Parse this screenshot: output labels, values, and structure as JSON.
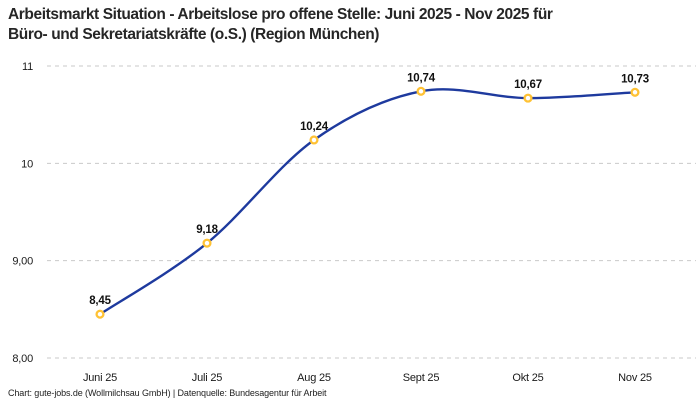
{
  "header": {
    "title_line1": "Arbeitsmarkt Situation - Arbeitslose pro offene Stelle: Juni 2025 - Nov 2025 für",
    "title_line2": "Büro- und Sekretariatskräfte (o.S.) (Region München)"
  },
  "footer": {
    "credit": "Chart: gute-jobs.de (Wollmilchsau GmbH) | Datenquelle: Bundesagentur für Arbeit"
  },
  "chart_data": {
    "type": "line",
    "title": "Arbeitsmarkt Situation - Arbeitslose pro offene Stelle: Juni 2025 - Nov 2025 für Büro- und Sekretariatskräfte (o.S.) (Region München)",
    "categories": [
      "Juni 25",
      "Juli 25",
      "Aug 25",
      "Sept 25",
      "Okt 25",
      "Nov 25"
    ],
    "values": [
      8.45,
      9.18,
      10.24,
      10.74,
      10.67,
      10.73
    ],
    "value_labels": [
      "8,45",
      "9,18",
      "10,24",
      "10,74",
      "10,67",
      "10,73"
    ],
    "xlabel": "",
    "ylabel": "",
    "ylim": [
      8,
      11
    ],
    "y_ticks": [
      {
        "value": 8,
        "label": "8,00"
      },
      {
        "value": 9,
        "label": "9,00"
      },
      {
        "value": 10,
        "label": "10"
      },
      {
        "value": 11,
        "label": "11"
      }
    ],
    "grid": "horizontal-dashed",
    "legend": "none",
    "curve": "smooth",
    "colors": {
      "line": "#1e3a9e",
      "marker_stroke": "#ffc234",
      "marker_fill": "#ffffff",
      "grid": "#c9c9c9"
    }
  }
}
